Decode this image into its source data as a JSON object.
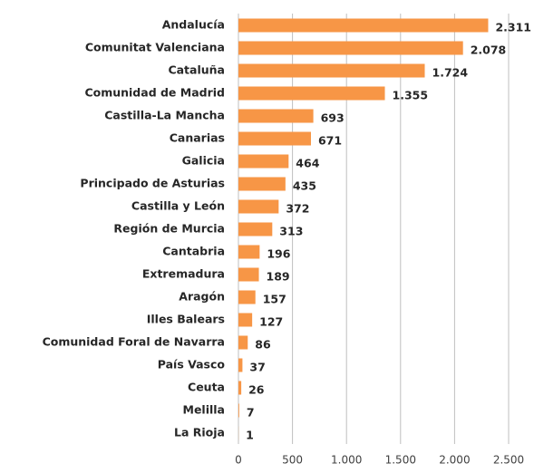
{
  "chart_data": {
    "type": "hbar",
    "categories": [
      "Andalucía",
      "Comunitat Valenciana",
      "Cataluña",
      "Comunidad de Madrid",
      "Castilla-La Mancha",
      "Canarias",
      "Galicia",
      "Principado de Asturias",
      "Castilla y León",
      "Región de Murcia",
      "Cantabria",
      "Extremadura",
      "Aragón",
      "Illes Balears",
      "Comunidad Foral de Navarra",
      "País Vasco",
      "Ceuta",
      "Melilla",
      "La Rioja"
    ],
    "values": [
      2311,
      2078,
      1724,
      1355,
      693,
      671,
      464,
      435,
      372,
      313,
      196,
      189,
      157,
      127,
      86,
      37,
      26,
      7,
      1
    ],
    "value_labels": [
      "2.311",
      "2.078",
      "1.724",
      "1.355",
      "693",
      "671",
      "464",
      "435",
      "372",
      "313",
      "196",
      "189",
      "157",
      "127",
      "86",
      "37",
      "26",
      "7",
      "1"
    ],
    "color": "#f79646",
    "xlim": [
      0,
      2500
    ],
    "xticks": [
      0,
      500,
      {
        "value": 1000,
        "label": "1.000"
      },
      {
        "value": 1500,
        "label": "1.500"
      },
      {
        "value": 2000,
        "label": "2.000"
      },
      {
        "value": 2500,
        "label": "2.500"
      }
    ],
    "grid": true
  }
}
